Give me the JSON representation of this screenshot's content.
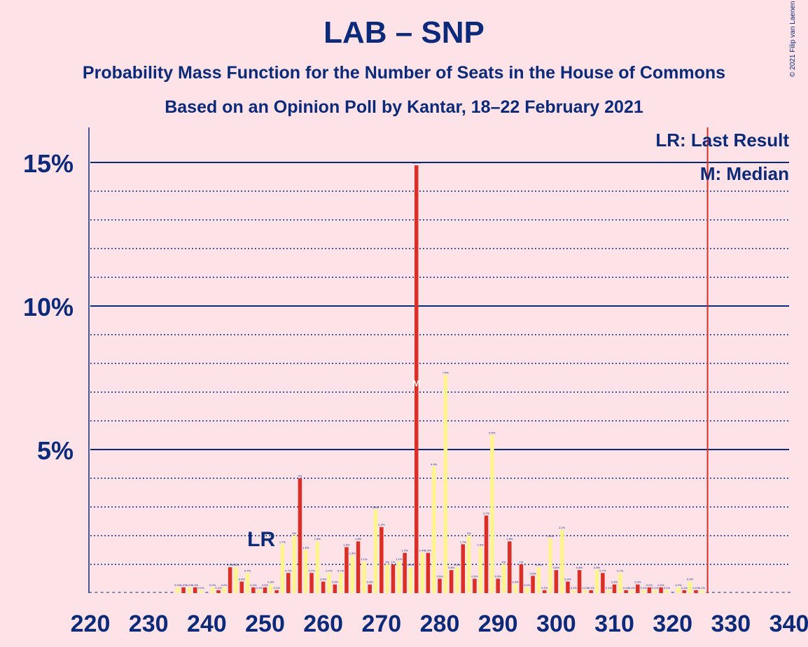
{
  "title": "LAB – SNP",
  "subtitle1": "Probability Mass Function for the Number of Seats in the House of Commons",
  "subtitle2": "Based on an Opinion Poll by Kantar, 18–22 February 2021",
  "copyright": "© 2021 Filip van Laenen",
  "legend": {
    "lr": "LR: Last Result",
    "median": "M: Median"
  },
  "markers": {
    "lr_label": "LR",
    "median_label": "M"
  },
  "colors": {
    "background": "#fde3e8",
    "red": "#db2e25",
    "yellow": "#fdf48e",
    "navy": "#0b2a7a"
  },
  "chart_data": {
    "type": "bar",
    "xlabel": "",
    "ylabel": "",
    "xlim": [
      220,
      340
    ],
    "ylim": [
      0,
      16
    ],
    "x_ticks": [
      "220",
      "230",
      "240",
      "250",
      "260",
      "270",
      "280",
      "290",
      "300",
      "310",
      "320",
      "330",
      "340"
    ],
    "y_ticks": [
      "5%",
      "10%",
      "15%"
    ],
    "last_result_seat": 252,
    "median_seat": 276,
    "majority_line_seat": 326,
    "series": [
      {
        "color": "red",
        "points": [
          [
            236,
            0.2
          ],
          [
            238,
            0.2
          ],
          [
            242,
            0.1
          ],
          [
            244,
            0.9
          ],
          [
            246,
            0.4
          ],
          [
            248,
            0.2
          ],
          [
            250,
            0.2
          ],
          [
            252,
            0.1
          ],
          [
            254,
            0.7
          ],
          [
            256,
            4.0
          ],
          [
            258,
            0.7
          ],
          [
            260,
            0.4
          ],
          [
            262,
            0.3
          ],
          [
            264,
            1.6
          ],
          [
            266,
            1.8
          ],
          [
            268,
            0.3
          ],
          [
            270,
            2.3
          ],
          [
            272,
            1.0
          ],
          [
            274,
            1.4
          ],
          [
            276,
            14.9
          ],
          [
            278,
            1.4
          ],
          [
            280,
            0.5
          ],
          [
            282,
            0.8
          ],
          [
            284,
            1.7
          ],
          [
            286,
            0.5
          ],
          [
            288,
            2.7
          ],
          [
            290,
            0.5
          ],
          [
            292,
            1.8
          ],
          [
            294,
            1.0
          ],
          [
            296,
            0.6
          ],
          [
            298,
            0.1
          ],
          [
            300,
            0.8
          ],
          [
            302,
            0.4
          ],
          [
            304,
            0.8
          ],
          [
            306,
            0.1
          ],
          [
            308,
            0.7
          ],
          [
            310,
            0.3
          ],
          [
            312,
            0.1
          ],
          [
            314,
            0.3
          ],
          [
            316,
            0.2
          ],
          [
            318,
            0.2
          ],
          [
            322,
            0.1
          ],
          [
            324,
            0.1
          ]
        ]
      },
      {
        "color": "yellow",
        "points": [
          [
            235,
            0.2
          ],
          [
            237,
            0.2
          ],
          [
            239,
            0.1
          ],
          [
            241,
            0.2
          ],
          [
            243,
            0.2
          ],
          [
            245,
            0.9
          ],
          [
            247,
            0.7
          ],
          [
            249,
            0.1
          ],
          [
            251,
            0.3
          ],
          [
            253,
            1.7
          ],
          [
            255,
            2.0
          ],
          [
            257,
            1.5
          ],
          [
            259,
            1.8
          ],
          [
            261,
            0.7
          ],
          [
            263,
            0.7
          ],
          [
            265,
            1.3
          ],
          [
            267,
            1.1
          ],
          [
            269,
            2.9
          ],
          [
            271,
            1.0
          ],
          [
            273,
            1.1
          ],
          [
            275,
            0.9
          ],
          [
            277,
            1.4
          ],
          [
            279,
            4.4
          ],
          [
            281,
            7.6
          ],
          [
            283,
            0.9
          ],
          [
            285,
            2.0
          ],
          [
            287,
            1.6
          ],
          [
            289,
            5.5
          ],
          [
            291,
            1.0
          ],
          [
            293,
            0.3
          ],
          [
            295,
            0.2
          ],
          [
            297,
            0.9
          ],
          [
            299,
            1.9
          ],
          [
            301,
            2.2
          ],
          [
            303,
            0.1
          ],
          [
            305,
            0.1
          ],
          [
            307,
            0.8
          ],
          [
            309,
            0.1
          ],
          [
            311,
            0.7
          ],
          [
            313,
            0.1
          ],
          [
            315,
            0.1
          ],
          [
            317,
            0.1
          ],
          [
            319,
            0.1
          ],
          [
            321,
            0.2
          ],
          [
            323,
            0.4
          ],
          [
            325,
            0.1
          ]
        ]
      }
    ]
  }
}
